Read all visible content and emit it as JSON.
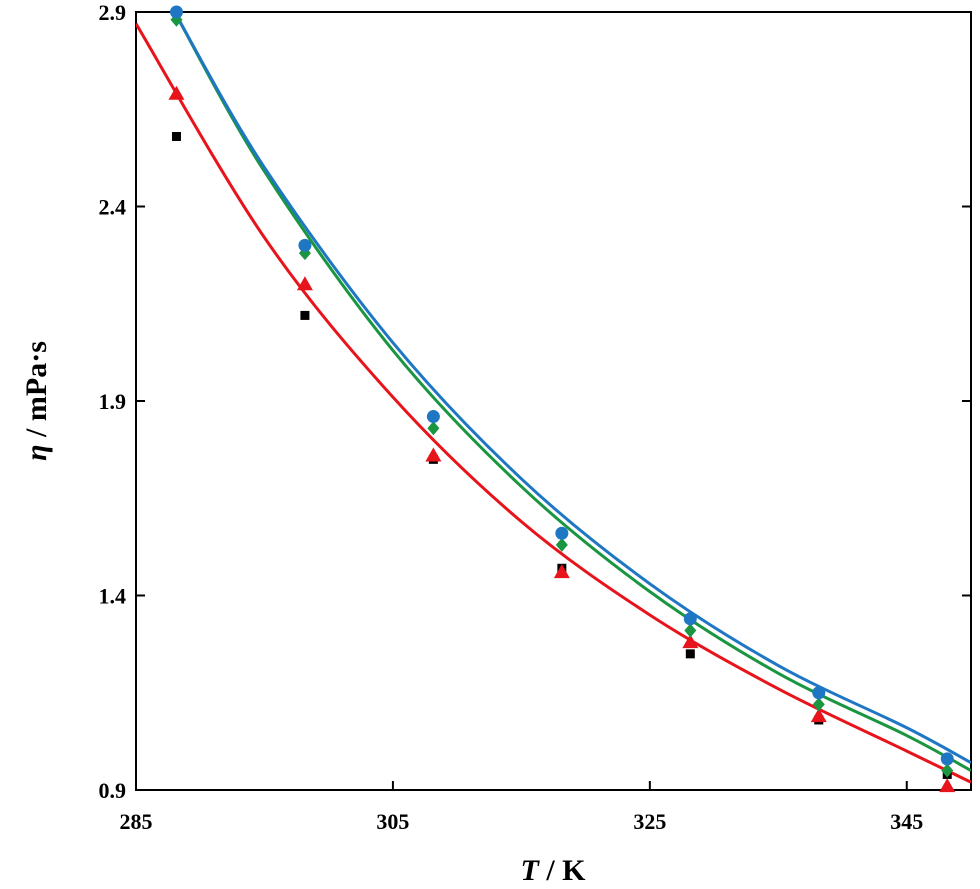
{
  "chart_data": {
    "type": "scatter",
    "xlabel": {
      "symbol": "T",
      "unit": " / K"
    },
    "ylabel": {
      "symbol": "η",
      "unit": " / mPa·s"
    },
    "xlim": [
      285,
      350
    ],
    "ylim": [
      0.9,
      2.9
    ],
    "xticks": [
      285,
      305,
      325,
      345
    ],
    "xtick_labels": [
      "285",
      "305",
      "325",
      "345"
    ],
    "yticks": [
      0.9,
      1.4,
      1.9,
      2.4,
      2.9
    ],
    "ytick_labels": [
      "0.9",
      "1.4",
      "1.9",
      "2.4",
      "2.9"
    ],
    "grid": false,
    "series": [
      {
        "marker": "square",
        "color": "#000000",
        "x": [
          288.15,
          298.15,
          308.15,
          318.15,
          328.15,
          338.15,
          348.15
        ],
        "y": [
          2.58,
          2.12,
          1.75,
          1.47,
          1.25,
          1.08,
          0.94
        ]
      },
      {
        "marker": "triangle",
        "color": "#e8141c",
        "x": [
          288.15,
          298.15,
          308.15,
          318.15,
          328.15,
          338.15,
          348.15
        ],
        "y": [
          2.69,
          2.2,
          1.76,
          1.46,
          1.28,
          1.09,
          0.91
        ],
        "fit": [
          [
            285,
            2.87
          ],
          [
            295,
            2.32
          ],
          [
            305,
            1.91
          ],
          [
            315,
            1.59
          ],
          [
            325,
            1.35
          ],
          [
            335,
            1.16
          ],
          [
            345,
            1.0
          ],
          [
            350,
            0.92
          ]
        ]
      },
      {
        "marker": "diamond",
        "color": "#1a9641",
        "x": [
          288.15,
          298.15,
          308.15,
          318.15,
          328.15,
          338.15,
          348.15
        ],
        "y": [
          2.88,
          2.28,
          1.83,
          1.53,
          1.31,
          1.12,
          0.95
        ],
        "fit": [
          [
            288,
            2.9
          ],
          [
            295,
            2.49
          ],
          [
            305,
            2.03
          ],
          [
            315,
            1.68
          ],
          [
            325,
            1.41
          ],
          [
            335,
            1.2
          ],
          [
            345,
            1.04
          ],
          [
            350,
            0.95
          ]
        ]
      },
      {
        "marker": "circle",
        "color": "#1f77c4",
        "x": [
          288.15,
          298.15,
          308.15,
          318.15,
          328.15,
          338.15,
          348.15
        ],
        "y": [
          2.9,
          2.3,
          1.86,
          1.56,
          1.34,
          1.15,
          0.98
        ],
        "fit": [
          [
            288,
            2.9
          ],
          [
            295,
            2.5
          ],
          [
            305,
            2.05
          ],
          [
            315,
            1.7
          ],
          [
            325,
            1.43
          ],
          [
            335,
            1.22
          ],
          [
            345,
            1.06
          ],
          [
            350,
            0.97
          ]
        ]
      }
    ]
  }
}
